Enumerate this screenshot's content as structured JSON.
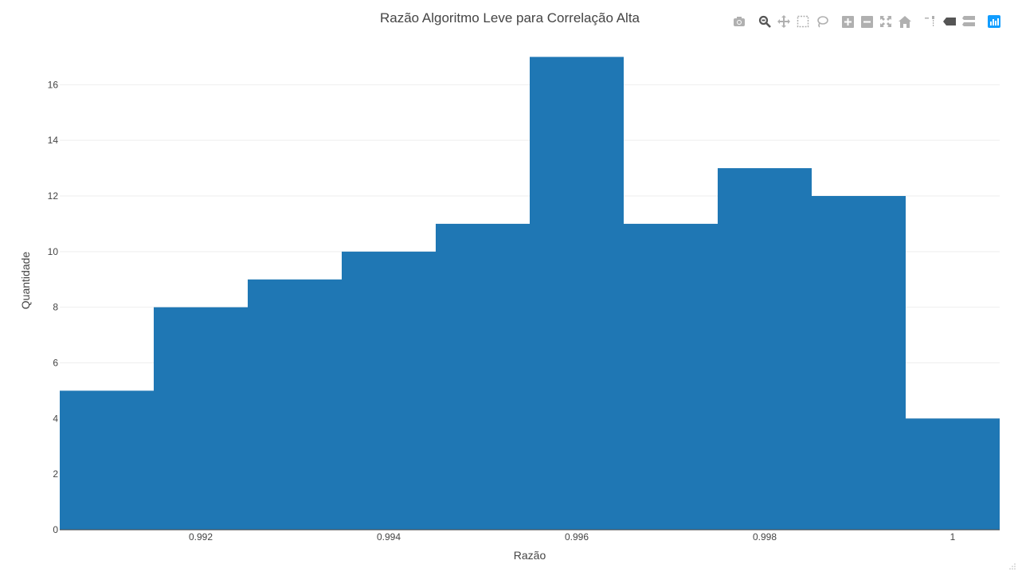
{
  "chart_data": {
    "type": "bar",
    "title": "Razão Algoritmo Leve para Correlação Alta",
    "xlabel": "Razão",
    "ylabel": "Quantidade",
    "bin_edges": [
      0.9905,
      0.9915,
      0.9925,
      0.9935,
      0.9945,
      0.9955,
      0.9965,
      0.9975,
      0.9985,
      0.9995,
      1.0005
    ],
    "values": [
      5,
      8,
      9,
      10,
      11,
      17,
      11,
      13,
      12,
      4
    ],
    "xlim": [
      0.9905,
      1.0005
    ],
    "ylim": [
      0,
      17.9
    ],
    "xticks": [
      0.992,
      0.994,
      0.996,
      0.998,
      1
    ],
    "xtick_labels": [
      "0.992",
      "0.994",
      "0.996",
      "0.998",
      "1"
    ],
    "yticks": [
      0,
      2,
      4,
      6,
      8,
      10,
      12,
      14,
      16
    ],
    "ytick_labels": [
      "0",
      "2",
      "4",
      "6",
      "8",
      "10",
      "12",
      "14",
      "16"
    ],
    "grid": true,
    "bar_color": "#1f77b4"
  },
  "toolbar": {
    "buttons": [
      "camera-icon",
      "zoom-icon",
      "pan-icon",
      "box-select-icon",
      "lasso-select-icon",
      "zoom-in-icon",
      "zoom-out-icon",
      "autoscale-icon",
      "reset-axes-icon",
      "spike-lines-icon",
      "hover-closest-icon",
      "hover-compare-icon",
      "plotly-logo-icon"
    ],
    "icon_color": "#b0b0b0",
    "active_color": "#555555",
    "logo_color": "#119dff"
  }
}
